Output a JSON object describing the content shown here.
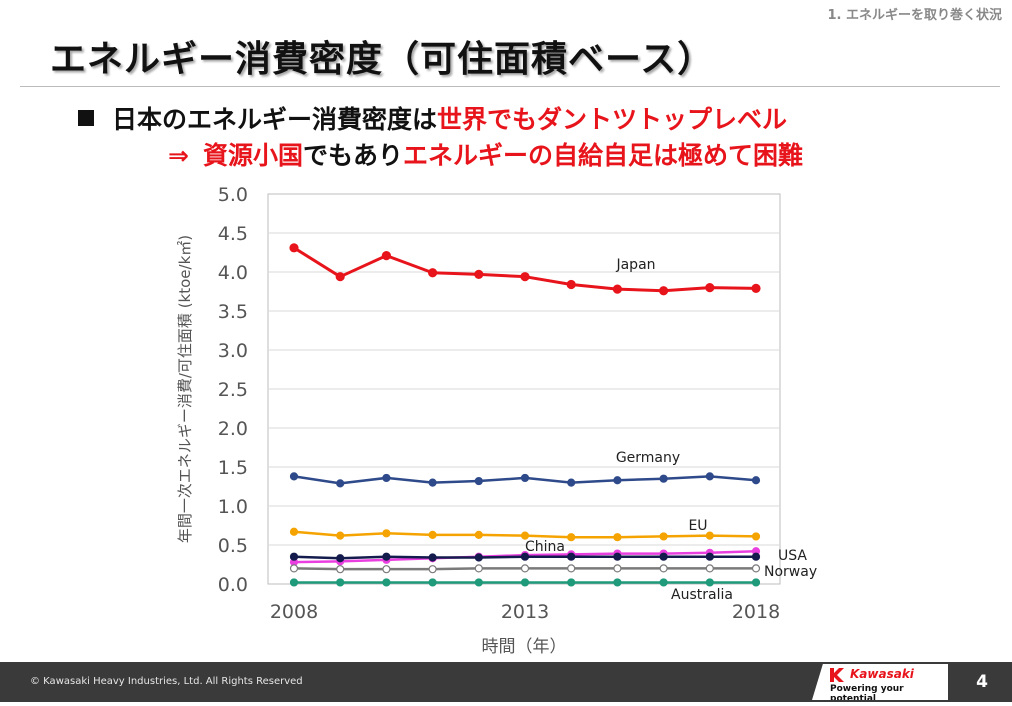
{
  "header": {
    "section": "1. エネルギーを取り巻く状況",
    "title": "エネルギー消費密度（可住面積ベース）"
  },
  "bullets": {
    "line1_a": "日本のエネルギー消費密度は",
    "line1_b": "世界でもダントツトップレベル",
    "line2_arrow": "⇒",
    "line2_a": "資源小国",
    "line2_b": "でもあり",
    "line2_c": "エネルギーの自給自足は極めて困難"
  },
  "footer": {
    "copyright": "© Kawasaki Heavy Industries, Ltd. All Rights Reserved",
    "logo_name": "Kawasaki",
    "logo_tagline": "Powering your potential",
    "page_number": "4"
  },
  "colors": {
    "accent_red": "#e8141b",
    "footer_bg": "#3a3a3a"
  },
  "chart_data": {
    "type": "line",
    "x": [
      2008,
      2009,
      2010,
      2011,
      2012,
      2013,
      2014,
      2015,
      2016,
      2017,
      2018
    ],
    "xticks": [
      "2008",
      "2013",
      "2018"
    ],
    "yticks": [
      "0.0",
      "0.5",
      "1.0",
      "1.5",
      "2.0",
      "2.5",
      "3.0",
      "3.5",
      "4.0",
      "4.5",
      "5.0"
    ],
    "ylim": [
      0,
      5
    ],
    "xlabel": "時間（年）",
    "ylabel": "年間一次エネルギー消費/可住面積 (ktoe/k㎡)",
    "grid": "horizontal",
    "series": [
      {
        "name": "Japan",
        "color": "#e8141b",
        "values": [
          4.31,
          3.94,
          4.21,
          3.99,
          3.97,
          3.94,
          3.84,
          3.78,
          3.76,
          3.8,
          3.79
        ]
      },
      {
        "name": "Germany",
        "color": "#2e4a8a",
        "values": [
          1.38,
          1.29,
          1.36,
          1.3,
          1.32,
          1.36,
          1.3,
          1.33,
          1.35,
          1.38,
          1.33
        ]
      },
      {
        "name": "EU",
        "color": "#f5a300",
        "values": [
          0.67,
          0.62,
          0.65,
          0.63,
          0.63,
          0.62,
          0.6,
          0.6,
          0.61,
          0.62,
          0.61
        ]
      },
      {
        "name": "China",
        "color": "#ea3fe0",
        "values": [
          0.28,
          0.29,
          0.31,
          0.33,
          0.35,
          0.37,
          0.38,
          0.39,
          0.39,
          0.4,
          0.42
        ]
      },
      {
        "name": "USA",
        "color": "#141b4d",
        "values": [
          0.35,
          0.33,
          0.35,
          0.34,
          0.34,
          0.35,
          0.35,
          0.35,
          0.35,
          0.35,
          0.35
        ]
      },
      {
        "name": "Norway",
        "color": "#7a7a7a",
        "values": [
          0.2,
          0.19,
          0.19,
          0.19,
          0.2,
          0.2,
          0.2,
          0.2,
          0.2,
          0.2,
          0.2
        ]
      },
      {
        "name": "Australia",
        "color": "#1f9a7a",
        "values": [
          0.02,
          0.02,
          0.02,
          0.02,
          0.02,
          0.02,
          0.02,
          0.02,
          0.02,
          0.02,
          0.02
        ]
      }
    ]
  }
}
